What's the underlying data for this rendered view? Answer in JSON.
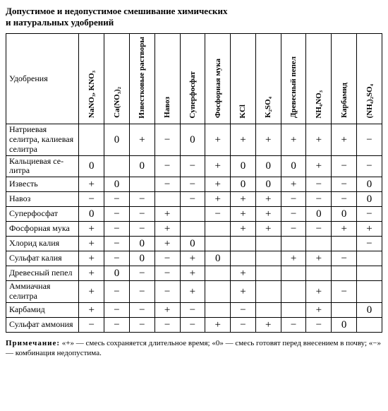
{
  "title_line1": "Допустимое и недопустимое смешивание химических",
  "title_line2": "и натуральных удобрений",
  "corner_label": "Удобрения",
  "columns": [
    "NaNO₃, KNO₃",
    "Ca(NO₃)₂",
    "Известковые растворы",
    "Навоз",
    "Суперфосфат",
    "Фосфорная мука",
    "KCl",
    "K₂SO₄",
    "Древесный пепел",
    "NH₄NO₃",
    "Карбамид",
    "(NH₄)₂SO₄"
  ],
  "rows": [
    {
      "label": "Натриевая селитра, калиевая селитра",
      "cells": [
        "",
        "0",
        "+",
        "−",
        "0",
        "+",
        "+",
        "+",
        "+",
        "+",
        "+",
        "−"
      ]
    },
    {
      "label": "Кальцие­вая се­литра",
      "cells": [
        "0",
        "",
        "0",
        "−",
        "−",
        "+",
        "0",
        "0",
        "0",
        "+",
        "−",
        "−"
      ]
    },
    {
      "label": "Известь",
      "cells": [
        "+",
        "0",
        "",
        "−",
        "−",
        "+",
        "0",
        "0",
        "+",
        "−",
        "−",
        "0"
      ]
    },
    {
      "label": "Навоз",
      "cells": [
        "−",
        "−",
        "−",
        "",
        "−",
        "+",
        "+",
        "+",
        "−",
        "−",
        "−",
        "0"
      ]
    },
    {
      "label": "Суперфо­сфат",
      "cells": [
        "0",
        "−",
        "−",
        "+",
        "",
        "−",
        "+",
        "+",
        "−",
        "0",
        "0",
        "−"
      ]
    },
    {
      "label": "Фосфор­ная мука",
      "cells": [
        "+",
        "−",
        "−",
        "+",
        "",
        "",
        "+",
        "+",
        "−",
        "−",
        "+",
        "+"
      ]
    },
    {
      "label": "Хлорид ка­лия",
      "cells": [
        "+",
        "−",
        "0",
        "+",
        "0",
        "",
        "",
        "",
        "",
        "",
        "",
        "−"
      ]
    },
    {
      "label": "Сульфат калия",
      "cells": [
        "+",
        "−",
        "0",
        "−",
        "+",
        "0",
        "",
        "",
        "+",
        "+",
        "−",
        ""
      ]
    },
    {
      "label": "Древесный пепел",
      "cells": [
        "+",
        "0",
        "−",
        "−",
        "+",
        "",
        "+",
        "",
        "",
        "",
        "",
        ""
      ]
    },
    {
      "label": "Аммиачная селитра",
      "cells": [
        "+",
        "−",
        "−",
        "−",
        "+",
        "",
        "+",
        "",
        "",
        "+",
        "−",
        ""
      ]
    },
    {
      "label": "Карбамид",
      "cells": [
        "+",
        "−",
        "−",
        "+",
        "−",
        "",
        "−",
        "",
        "",
        "+",
        "",
        "0"
      ]
    },
    {
      "label": "Сульфат аммония",
      "cells": [
        "−",
        "−",
        "−",
        "−",
        "−",
        "+",
        "−",
        "+",
        "−",
        "−",
        "0",
        ""
      ]
    }
  ],
  "note_label": "Примечание:",
  "note_body_1": " «+» — смесь сохраняется длительное время; «0» — смесь готовят перед внесением в почву; «−» — комбинация недопустима."
}
